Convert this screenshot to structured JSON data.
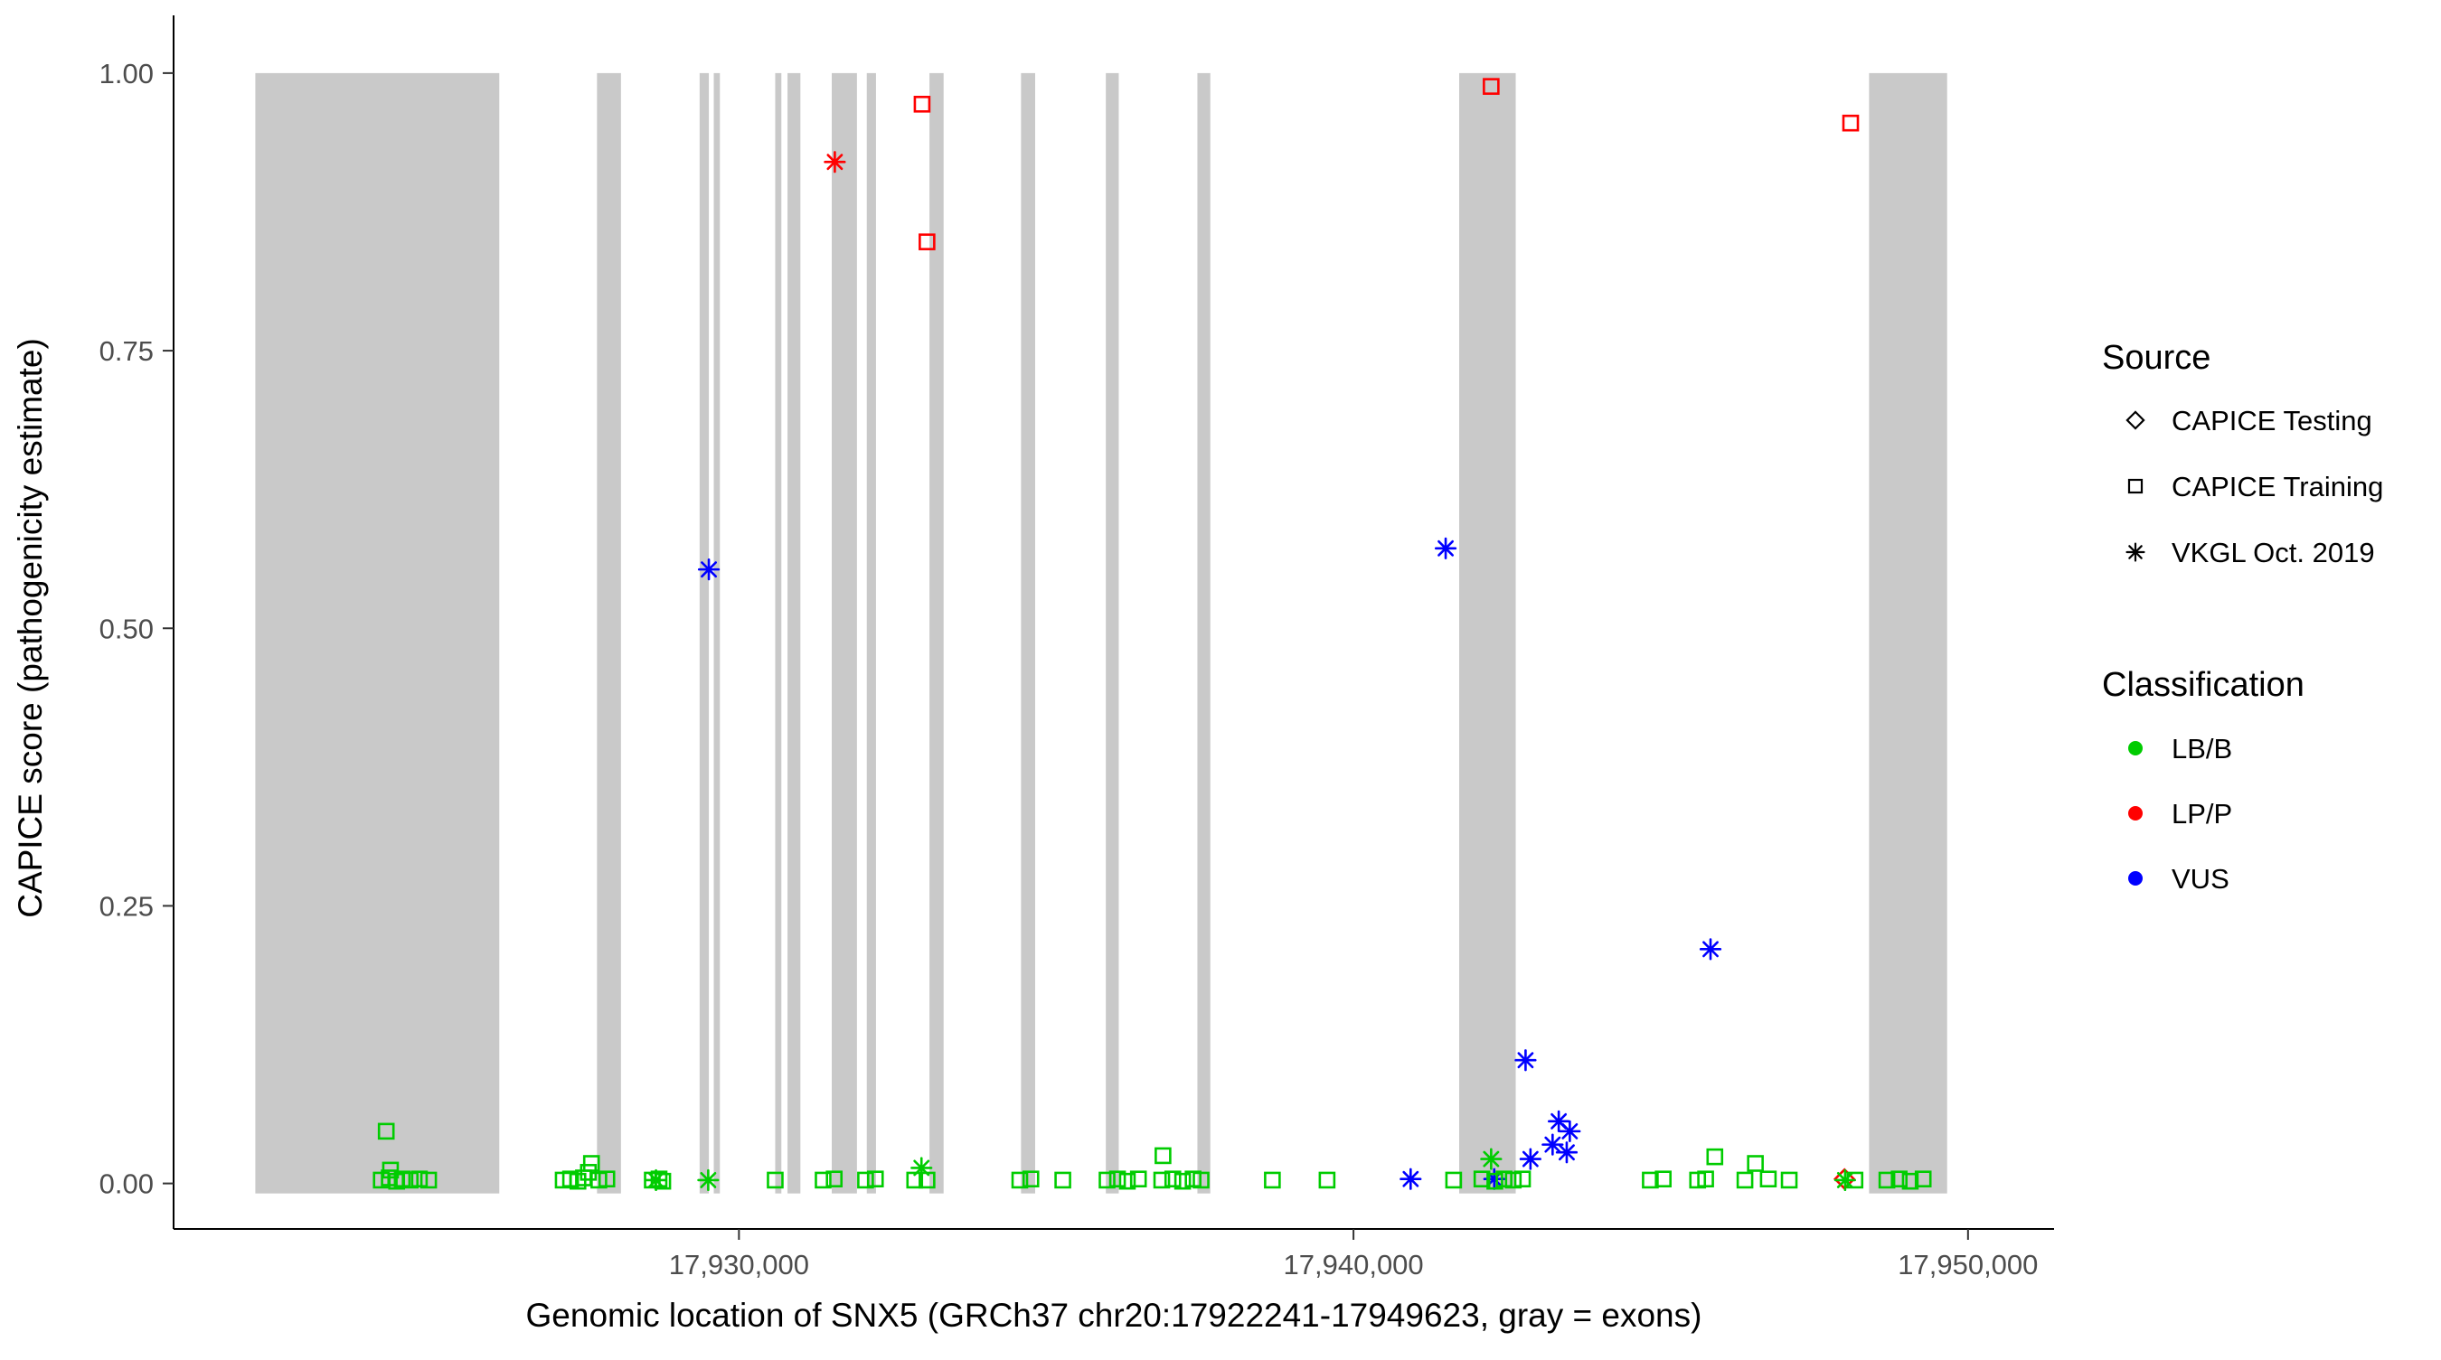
{
  "chart_data": {
    "type": "scatter",
    "title": "",
    "xlabel": "Genomic location of SNX5 (GRCh37 chr20:17922241-17949623, gray = exons)",
    "ylabel": "CAPICE score (pathogenicity estimate)",
    "xlim": [
      17920800,
      17951400
    ],
    "ylim": [
      -0.041,
      1.052
    ],
    "grid": "off",
    "x_ticks": [
      {
        "value": 17930000,
        "label": "17,930,000"
      },
      {
        "value": 17940000,
        "label": "17,940,000"
      },
      {
        "value": 17950000,
        "label": "17,950,000"
      }
    ],
    "y_ticks": [
      {
        "value": 0.0,
        "label": "0.00"
      },
      {
        "value": 0.25,
        "label": "0.25"
      },
      {
        "value": 0.5,
        "label": "0.50"
      },
      {
        "value": 0.75,
        "label": "0.75"
      },
      {
        "value": 1.0,
        "label": "1.00"
      }
    ],
    "exon_color": "#C9C9C9",
    "exon_band_yrange": [
      -0.009,
      1.0
    ],
    "exons": [
      [
        17922130,
        17926100
      ],
      [
        17927690,
        17928080
      ],
      [
        17929360,
        17929510
      ],
      [
        17929590,
        17929690
      ],
      [
        17930590,
        17930690
      ],
      [
        17930790,
        17931000
      ],
      [
        17931510,
        17931920
      ],
      [
        17932080,
        17932230
      ],
      [
        17933100,
        17933330
      ],
      [
        17934590,
        17934820
      ],
      [
        17935970,
        17936180
      ],
      [
        17937460,
        17937670
      ],
      [
        17941720,
        17942640
      ],
      [
        17948390,
        17949660
      ]
    ],
    "colors": {
      "LB/B": "#00CC00",
      "LP/P": "#FF0000",
      "VUS": "#0000FF"
    },
    "shapes": {
      "testing": "diamond",
      "training": "square",
      "vkgl": "asterisk"
    },
    "legend": {
      "source": {
        "title": "Source",
        "items": [
          {
            "label": "CAPICE Testing",
            "shape": "diamond"
          },
          {
            "label": "CAPICE Training",
            "shape": "square"
          },
          {
            "label": "VKGL Oct. 2019",
            "shape": "asterisk"
          }
        ]
      },
      "classification": {
        "title": "Classification",
        "items": [
          {
            "label": "LB/B"
          },
          {
            "label": "LP/P"
          },
          {
            "label": "VUS"
          }
        ]
      }
    },
    "points": [
      [
        17932980,
        0.972,
        "training",
        "LP/P"
      ],
      [
        17933060,
        0.848,
        "training",
        "LP/P"
      ],
      [
        17942240,
        0.988,
        "training",
        "LP/P"
      ],
      [
        17948090,
        0.955,
        "training",
        "LP/P"
      ],
      [
        17931560,
        0.92,
        "vkgl",
        "LP/P"
      ],
      [
        17947990,
        0.004,
        "testing",
        "LP/P"
      ],
      [
        17929510,
        0.553,
        "vkgl",
        "VUS"
      ],
      [
        17941500,
        0.572,
        "vkgl",
        "VUS"
      ],
      [
        17945810,
        0.211,
        "vkgl",
        "VUS"
      ],
      [
        17942800,
        0.111,
        "vkgl",
        "VUS"
      ],
      [
        17943340,
        0.056,
        "vkgl",
        "VUS"
      ],
      [
        17943520,
        0.047,
        "vkgl",
        "VUS"
      ],
      [
        17943240,
        0.035,
        "vkgl",
        "VUS"
      ],
      [
        17943470,
        0.028,
        "vkgl",
        "VUS"
      ],
      [
        17942880,
        0.022,
        "vkgl",
        "VUS"
      ],
      [
        17940930,
        0.004,
        "vkgl",
        "VUS"
      ],
      [
        17942290,
        0.004,
        "vkgl",
        "VUS"
      ],
      [
        17924260,
        0.047,
        "training",
        "LB/B"
      ],
      [
        17924330,
        0.012,
        "training",
        "LB/B"
      ],
      [
        17927600,
        0.018,
        "training",
        "LB/B"
      ],
      [
        17927550,
        0.01,
        "training",
        "LB/B"
      ],
      [
        17932970,
        0.014,
        "vkgl",
        "LB/B"
      ],
      [
        17936900,
        0.025,
        "training",
        "LB/B"
      ],
      [
        17942240,
        0.022,
        "vkgl",
        "LB/B"
      ],
      [
        17945880,
        0.024,
        "training",
        "LB/B"
      ],
      [
        17946540,
        0.018,
        "training",
        "LB/B"
      ],
      [
        17928650,
        0.003,
        "vkgl",
        "LB/B"
      ],
      [
        17929500,
        0.003,
        "vkgl",
        "LB/B"
      ],
      [
        17948000,
        0.003,
        "vkgl",
        "LB/B"
      ],
      [
        17924180,
        0.003,
        "training",
        "LB/B"
      ],
      [
        17924310,
        0.005,
        "training",
        "LB/B"
      ],
      [
        17924430,
        0.002,
        "training",
        "LB/B"
      ],
      [
        17924520,
        0.004,
        "training",
        "LB/B"
      ],
      [
        17924650,
        0.003,
        "training",
        "LB/B"
      ],
      [
        17924800,
        0.004,
        "training",
        "LB/B"
      ],
      [
        17924950,
        0.003,
        "training",
        "LB/B"
      ],
      [
        17927140,
        0.003,
        "training",
        "LB/B"
      ],
      [
        17927260,
        0.004,
        "training",
        "LB/B"
      ],
      [
        17927380,
        0.002,
        "training",
        "LB/B"
      ],
      [
        17927470,
        0.005,
        "training",
        "LB/B"
      ],
      [
        17927720,
        0.003,
        "training",
        "LB/B"
      ],
      [
        17927850,
        0.004,
        "training",
        "LB/B"
      ],
      [
        17928590,
        0.003,
        "training",
        "LB/B"
      ],
      [
        17928700,
        0.004,
        "training",
        "LB/B"
      ],
      [
        17928760,
        0.002,
        "training",
        "LB/B"
      ],
      [
        17930590,
        0.003,
        "training",
        "LB/B"
      ],
      [
        17931370,
        0.003,
        "training",
        "LB/B"
      ],
      [
        17931550,
        0.004,
        "training",
        "LB/B"
      ],
      [
        17932060,
        0.003,
        "training",
        "LB/B"
      ],
      [
        17932220,
        0.004,
        "training",
        "LB/B"
      ],
      [
        17932860,
        0.003,
        "training",
        "LB/B"
      ],
      [
        17933060,
        0.003,
        "training",
        "LB/B"
      ],
      [
        17934570,
        0.003,
        "training",
        "LB/B"
      ],
      [
        17934750,
        0.004,
        "training",
        "LB/B"
      ],
      [
        17935270,
        0.003,
        "training",
        "LB/B"
      ],
      [
        17935990,
        0.003,
        "training",
        "LB/B"
      ],
      [
        17936160,
        0.004,
        "training",
        "LB/B"
      ],
      [
        17936320,
        0.002,
        "training",
        "LB/B"
      ],
      [
        17936500,
        0.004,
        "training",
        "LB/B"
      ],
      [
        17936880,
        0.003,
        "training",
        "LB/B"
      ],
      [
        17937060,
        0.004,
        "training",
        "LB/B"
      ],
      [
        17937220,
        0.002,
        "training",
        "LB/B"
      ],
      [
        17937390,
        0.004,
        "training",
        "LB/B"
      ],
      [
        17937520,
        0.003,
        "training",
        "LB/B"
      ],
      [
        17938680,
        0.003,
        "training",
        "LB/B"
      ],
      [
        17939570,
        0.003,
        "training",
        "LB/B"
      ],
      [
        17941630,
        0.003,
        "training",
        "LB/B"
      ],
      [
        17942090,
        0.004,
        "training",
        "LB/B"
      ],
      [
        17942300,
        0.002,
        "training",
        "LB/B"
      ],
      [
        17942450,
        0.004,
        "training",
        "LB/B"
      ],
      [
        17942600,
        0.003,
        "training",
        "LB/B"
      ],
      [
        17942750,
        0.004,
        "training",
        "LB/B"
      ],
      [
        17944830,
        0.003,
        "training",
        "LB/B"
      ],
      [
        17945040,
        0.004,
        "training",
        "LB/B"
      ],
      [
        17945600,
        0.003,
        "training",
        "LB/B"
      ],
      [
        17945730,
        0.004,
        "training",
        "LB/B"
      ],
      [
        17946370,
        0.003,
        "training",
        "LB/B"
      ],
      [
        17946750,
        0.004,
        "training",
        "LB/B"
      ],
      [
        17947090,
        0.003,
        "training",
        "LB/B"
      ],
      [
        17948160,
        0.003,
        "training",
        "LB/B"
      ],
      [
        17948680,
        0.003,
        "training",
        "LB/B"
      ],
      [
        17948880,
        0.004,
        "training",
        "LB/B"
      ],
      [
        17949060,
        0.002,
        "training",
        "LB/B"
      ],
      [
        17949270,
        0.004,
        "training",
        "LB/B"
      ]
    ]
  }
}
